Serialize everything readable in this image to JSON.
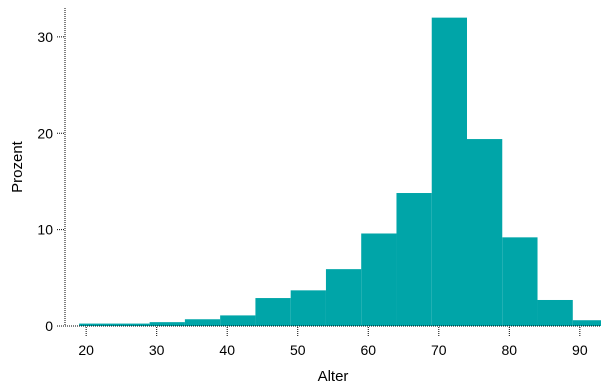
{
  "chart_data": {
    "type": "bar",
    "title": "",
    "xlabel": "Alter",
    "ylabel": "Prozent",
    "xlim": [
      17,
      93
    ],
    "ylim": [
      0,
      33
    ],
    "grid": false,
    "bar_color": "#00a5a8",
    "axis_style": "dotted",
    "x_ticks": [
      20,
      30,
      40,
      50,
      60,
      70,
      80,
      90
    ],
    "y_ticks": [
      0,
      10,
      20,
      30
    ],
    "bins": [
      {
        "start": 19,
        "end": 29,
        "value": 0.25
      },
      {
        "start": 29,
        "end": 34,
        "value": 0.4
      },
      {
        "start": 34,
        "end": 39,
        "value": 0.7
      },
      {
        "start": 39,
        "end": 44,
        "value": 1.1
      },
      {
        "start": 44,
        "end": 49,
        "value": 2.9
      },
      {
        "start": 49,
        "end": 54,
        "value": 3.7
      },
      {
        "start": 54,
        "end": 59,
        "value": 5.9
      },
      {
        "start": 59,
        "end": 64,
        "value": 9.6
      },
      {
        "start": 64,
        "end": 69,
        "value": 13.8
      },
      {
        "start": 69,
        "end": 74,
        "value": 32.0
      },
      {
        "start": 74,
        "end": 79,
        "value": 19.4
      },
      {
        "start": 79,
        "end": 84,
        "value": 9.2
      },
      {
        "start": 84,
        "end": 89,
        "value": 2.7
      },
      {
        "start": 89,
        "end": 93,
        "value": 0.6
      }
    ]
  }
}
